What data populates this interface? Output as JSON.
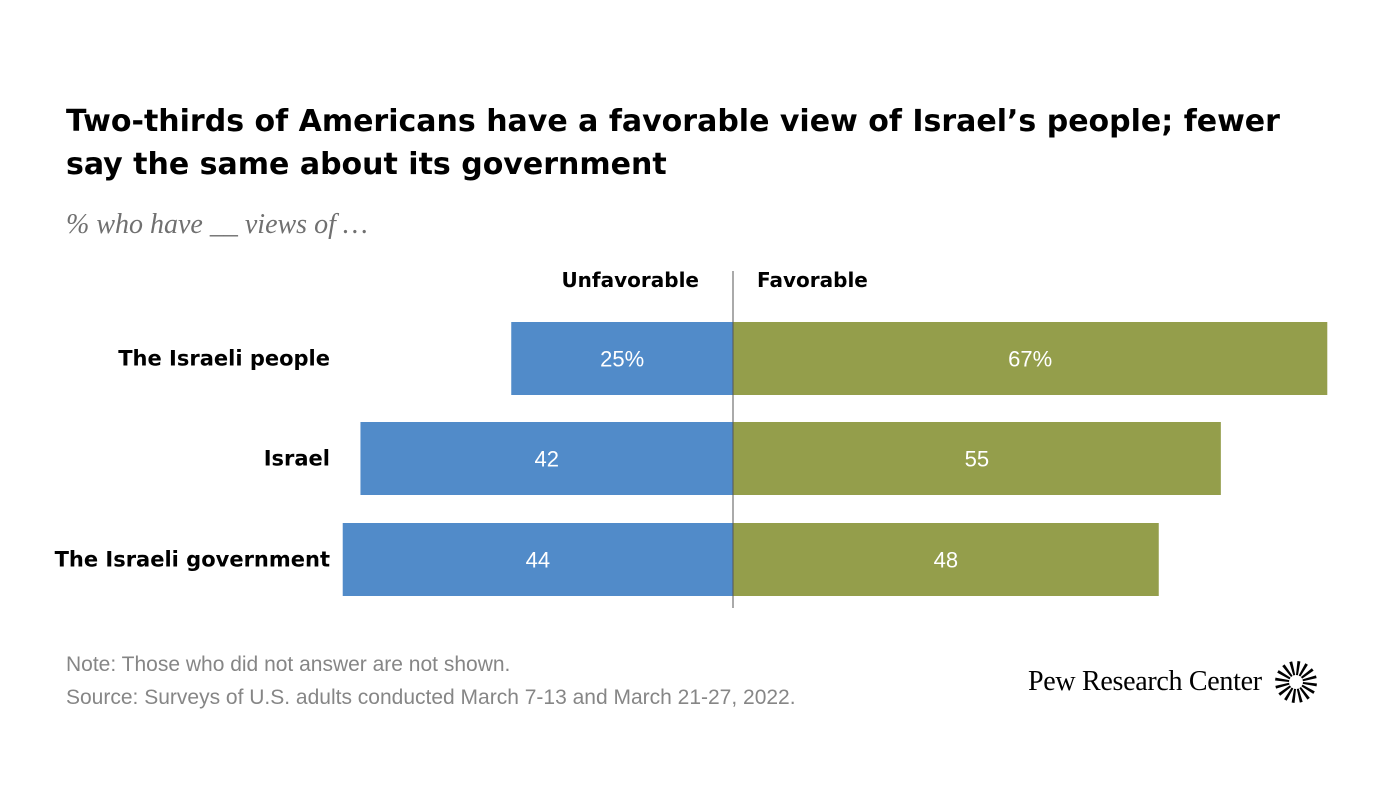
{
  "header": {
    "title": "Two-thirds of Americans have a favorable view of Israel’s people; fewer say the same about its government",
    "subtitle": "% who have __ views of …"
  },
  "footer": {
    "note": "Note: Those who did not answer are not shown.",
    "source": "Source: Surveys of U.S. adults conducted March 7-13 and March 21-27, 2022.",
    "brand": "Pew Research Center",
    "brand_icon": "pew-sunburst-logo-icon"
  },
  "chart_data": {
    "type": "bar",
    "orientation": "horizontal-diverging",
    "categories": [
      "The Israeli people",
      "Israel",
      "The Israeli government"
    ],
    "series": [
      {
        "name": "Unfavorable",
        "values": [
          25,
          42,
          44
        ],
        "labels": [
          "25%",
          "42",
          "44"
        ],
        "color": "#518bc9",
        "direction": "left"
      },
      {
        "name": "Favorable",
        "values": [
          67,
          55,
          48
        ],
        "labels": [
          "67%",
          "55",
          "48"
        ],
        "color": "#949e4b",
        "direction": "right"
      }
    ],
    "grid": false,
    "legend": "column headers above bars"
  }
}
